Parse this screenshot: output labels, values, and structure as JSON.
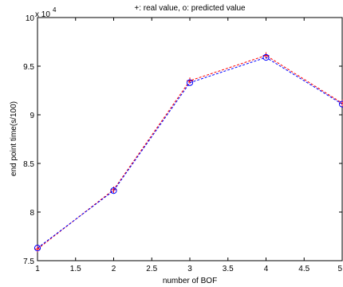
{
  "chart_data": {
    "type": "line",
    "title": "+: real value,   o: predicted value",
    "xlabel": "number of BOF",
    "ylabel": "end point time(s/100)",
    "y_multiplier_base": "x 10",
    "y_multiplier_exp": "4",
    "xlim": [
      1,
      5
    ],
    "ylim": [
      7.5,
      10
    ],
    "x_ticks": [
      1,
      1.5,
      2,
      2.5,
      3,
      3.5,
      4,
      4.5,
      5
    ],
    "x_tick_labels": [
      "1",
      "1.5",
      "2",
      "2.5",
      "3",
      "3.5",
      "4",
      "4.5",
      "5"
    ],
    "y_ticks": [
      7.5,
      8,
      8.5,
      9,
      9.5,
      10
    ],
    "y_tick_labels": [
      "7.5",
      "8",
      "8.5",
      "9",
      "9.5",
      "10"
    ],
    "grid": false,
    "series": [
      {
        "name": "real value",
        "marker": "+",
        "color": "#ff0000",
        "linestyle": "dashed",
        "x": [
          1,
          2,
          3,
          4,
          5
        ],
        "y": [
          7.62,
          8.23,
          9.35,
          9.61,
          9.12
        ]
      },
      {
        "name": "predicted value",
        "marker": "o",
        "color": "#0000ff",
        "linestyle": "dashed",
        "x": [
          1,
          2,
          3,
          4,
          5
        ],
        "y": [
          7.63,
          8.22,
          9.33,
          9.59,
          9.11
        ]
      }
    ]
  }
}
